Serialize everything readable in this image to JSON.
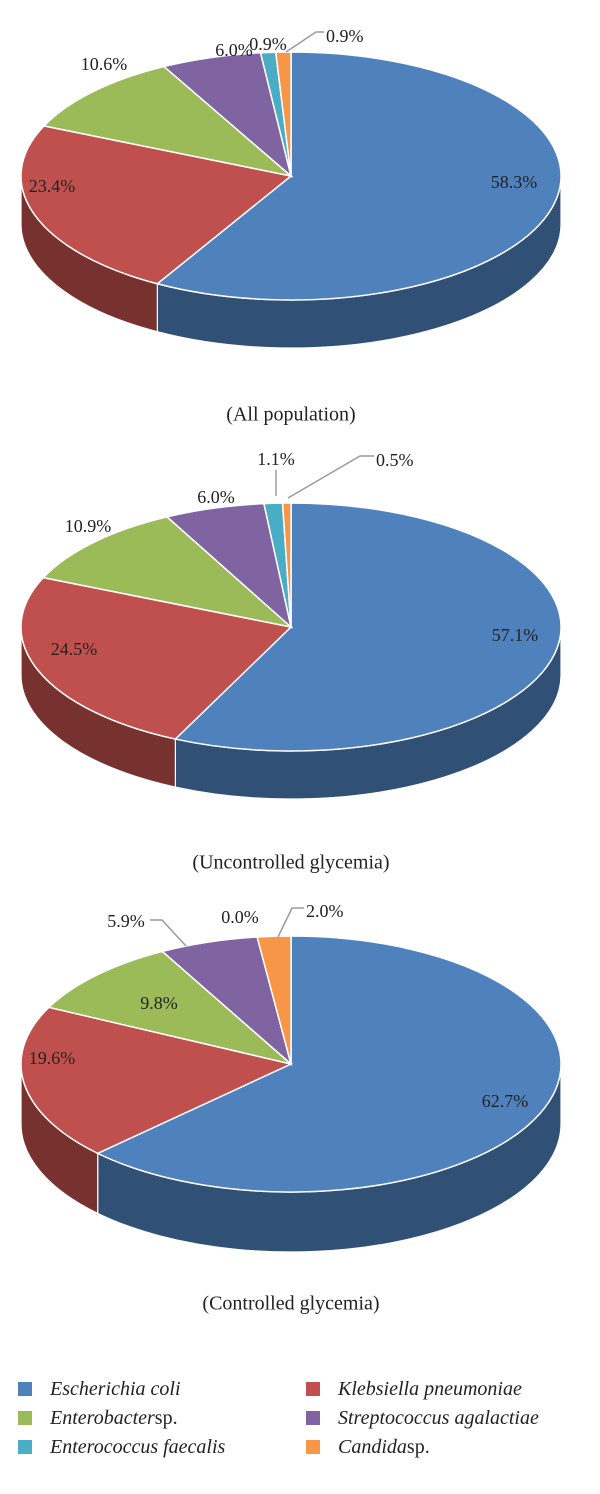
{
  "chart_data": [
    {
      "type": "pie",
      "caption": "(All population)",
      "slices": [
        {
          "label": "Escherichia coli",
          "value": 58.3,
          "text": "58.3%"
        },
        {
          "label": "Klebsiella pneumoniae",
          "value": 23.4,
          "text": "23.4%"
        },
        {
          "label": "Enterobacter sp.",
          "value": 10.6,
          "text": "10.6%"
        },
        {
          "label": "Streptococcus agalactiae",
          "value": 6.0,
          "text": "6.0%"
        },
        {
          "label": "Enterococcus faecalis",
          "value": 0.9,
          "text": "0.9%"
        },
        {
          "label": "Candida sp.",
          "value": 0.9,
          "text": "0.9%"
        }
      ]
    },
    {
      "type": "pie",
      "caption": "(Uncontrolled glycemia)",
      "slices": [
        {
          "label": "Escherichia coli",
          "value": 57.1,
          "text": "57.1%"
        },
        {
          "label": "Klebsiella pneumoniae",
          "value": 24.5,
          "text": "24.5%"
        },
        {
          "label": "Enterobacter sp.",
          "value": 10.9,
          "text": "10.9%"
        },
        {
          "label": "Streptococcus agalactiae",
          "value": 6.0,
          "text": "6.0%"
        },
        {
          "label": "Enterococcus faecalis",
          "value": 1.1,
          "text": "1.1%"
        },
        {
          "label": "Candida sp.",
          "value": 0.5,
          "text": "0.5%"
        }
      ]
    },
    {
      "type": "pie",
      "caption": "(Controlled glycemia)",
      "slices": [
        {
          "label": "Escherichia coli",
          "value": 62.7,
          "text": "62.7%"
        },
        {
          "label": "Klebsiella pneumoniae",
          "value": 19.6,
          "text": "19.6%"
        },
        {
          "label": "Enterobacter sp.",
          "value": 9.8,
          "text": "9.8%"
        },
        {
          "label": "Streptococcus agalactiae",
          "value": 5.9,
          "text": "5.9%"
        },
        {
          "label": "Enterococcus faecalis",
          "value": 0.0,
          "text": "0.0%"
        },
        {
          "label": "Candida sp.",
          "value": 2.0,
          "text": "2.0%"
        }
      ]
    }
  ],
  "legend": [
    {
      "italic": "Escherichia coli",
      "suffix": "",
      "color": "#4f81bd"
    },
    {
      "italic": "Klebsiella pneumoniae",
      "suffix": "",
      "color": "#c0504d"
    },
    {
      "italic": "Enterobacter",
      "suffix": " sp.",
      "color": "#9bbb59"
    },
    {
      "italic": "Streptococcus agalactiae",
      "suffix": "",
      "color": "#8064a2"
    },
    {
      "italic": "Enterococcus faecalis",
      "suffix": "",
      "color": "#4bacc6"
    },
    {
      "italic": "Candida",
      "suffix": " sp.",
      "color": "#f79646"
    }
  ],
  "colors": {
    "Escherichia coli": "#4f81bd",
    "Klebsiella pneumoniae": "#c0504d",
    "Enterobacter sp.": "#9bbb59",
    "Streptococcus agalactiae": "#8064a2",
    "Enterococcus faecalis": "#4bacc6",
    "Candida sp.": "#f79646"
  }
}
